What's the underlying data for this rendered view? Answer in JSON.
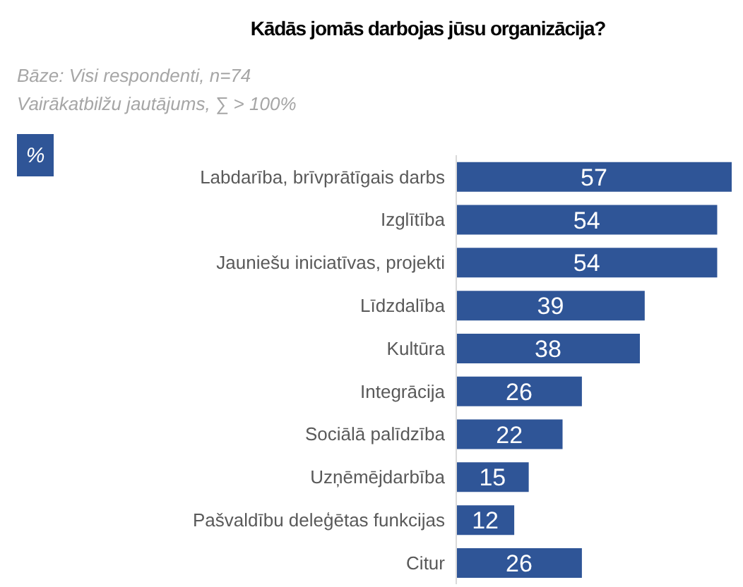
{
  "chart_data": {
    "type": "bar",
    "orientation": "horizontal",
    "title": "Kādās jomās darbojas jūsu organizācija?",
    "subtitle": "Bāze: Visi respondenti, n=74\nVairākatbilžu jautājums, ∑ > 100%",
    "annotations": [
      "%"
    ],
    "categories": [
      "Labdarība, brīvprātīgais darbs",
      "Izglītība",
      "Jauniešu iniciatīvas, projekti",
      "Līdzdalība",
      "Kultūra",
      "Integrācija",
      "Sociālā palīdzība",
      "Uzņēmējdarbība",
      "Pašvaldību deleģētas funkcijas",
      "Citur"
    ],
    "values": [
      57,
      54,
      54,
      39,
      38,
      26,
      22,
      15,
      12,
      26
    ],
    "color": "#2f5597",
    "data_labels": true
  }
}
